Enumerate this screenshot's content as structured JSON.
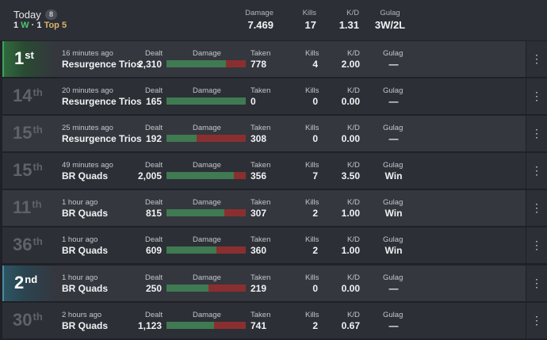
{
  "summary": {
    "today_label": "Today",
    "games_count": "8",
    "wins": "1",
    "wins_suffix": "W",
    "separator": "·",
    "top5_count": "1",
    "top5_label": "Top 5",
    "damage_label": "Damage",
    "damage_value": "7.469",
    "kills_label": "Kills",
    "kills_value": "17",
    "kd_label": "K/D",
    "kd_value": "1.31",
    "gulag_label": "Gulag",
    "gulag_value": "3W/2L"
  },
  "labels": {
    "dealt": "Dealt",
    "damage": "Damage",
    "taken": "Taken",
    "kills": "Kills",
    "kd": "K/D",
    "gulag": "Gulag",
    "menu_glyph": "⋮"
  },
  "colors": {
    "dealt_bar": "#3f7a52",
    "taken_bar": "#8a2f30",
    "win_accent": "#3ea45a",
    "second_accent": "#4b8ba4"
  },
  "matches": [
    {
      "place": "1",
      "suffix": "st",
      "when": "16 minutes ago",
      "mode": "Resurgence Trios",
      "dealt": "2,310",
      "taken": "778",
      "kills": "4",
      "kd": "2.00",
      "gulag": "—",
      "dealt_share": 0.748
    },
    {
      "place": "14",
      "suffix": "th",
      "when": "20 minutes ago",
      "mode": "Resurgence Trios",
      "dealt": "165",
      "taken": "0",
      "kills": "0",
      "kd": "0.00",
      "gulag": "—",
      "dealt_share": 1.0
    },
    {
      "place": "15",
      "suffix": "th",
      "when": "25 minutes ago",
      "mode": "Resurgence Trios",
      "dealt": "192",
      "taken": "308",
      "kills": "0",
      "kd": "0.00",
      "gulag": "—",
      "dealt_share": 0.384
    },
    {
      "place": "15",
      "suffix": "th",
      "when": "49 minutes ago",
      "mode": "BR Quads",
      "dealt": "2,005",
      "taken": "356",
      "kills": "7",
      "kd": "3.50",
      "gulag": "Win",
      "dealt_share": 0.849
    },
    {
      "place": "11",
      "suffix": "th",
      "when": "1 hour ago",
      "mode": "BR Quads",
      "dealt": "815",
      "taken": "307",
      "kills": "2",
      "kd": "1.00",
      "gulag": "Win",
      "dealt_share": 0.726
    },
    {
      "place": "36",
      "suffix": "th",
      "when": "1 hour ago",
      "mode": "BR Quads",
      "dealt": "609",
      "taken": "360",
      "kills": "2",
      "kd": "1.00",
      "gulag": "Win",
      "dealt_share": 0.628
    },
    {
      "place": "2",
      "suffix": "nd",
      "when": "1 hour ago",
      "mode": "BR Quads",
      "dealt": "250",
      "taken": "219",
      "kills": "0",
      "kd": "0.00",
      "gulag": "—",
      "dealt_share": 0.533
    },
    {
      "place": "30",
      "suffix": "th",
      "when": "2 hours ago",
      "mode": "BR Quads",
      "dealt": "1,123",
      "taken": "741",
      "kills": "2",
      "kd": "0.67",
      "gulag": "—",
      "dealt_share": 0.602
    }
  ]
}
